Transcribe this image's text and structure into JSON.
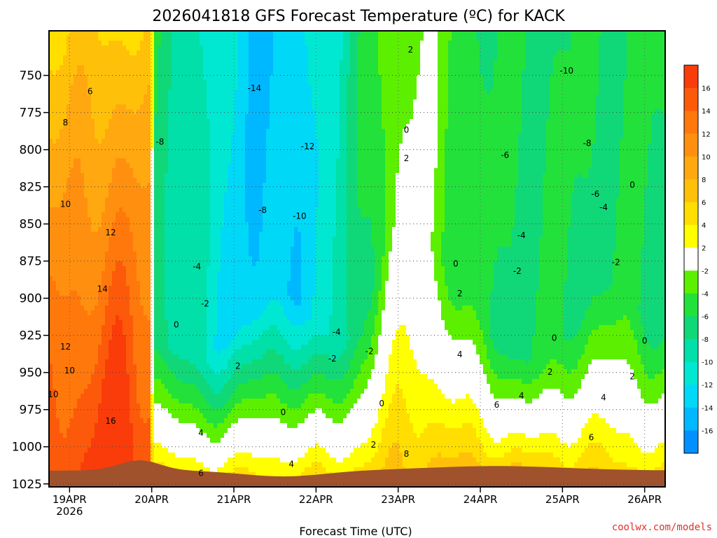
{
  "chart_data": {
    "type": "heatmap",
    "title": "2026041818 GFS Forecast Temperature (ºC) for KACK",
    "xlabel": "Forecast Time (UTC)",
    "ylabel": "Pressure (hPa)",
    "credit": "coolwx.com/models",
    "x_ticks": [
      {
        "t": 0,
        "label": "19APR",
        "sub": "2026"
      },
      {
        "t": 1,
        "label": "20APR"
      },
      {
        "t": 2,
        "label": "21APR"
      },
      {
        "t": 3,
        "label": "22APR"
      },
      {
        "t": 4,
        "label": "23APR"
      },
      {
        "t": 5,
        "label": "24APR"
      },
      {
        "t": 6,
        "label": "25APR"
      },
      {
        "t": 7,
        "label": "26APR"
      }
    ],
    "xlim": [
      -0.25,
      7.25
    ],
    "y_ticks": [
      750,
      775,
      800,
      825,
      850,
      875,
      900,
      925,
      950,
      975,
      1000,
      1025
    ],
    "ylim": [
      720,
      1027
    ],
    "colorbar": {
      "ticks": [
        16,
        14,
        12,
        10,
        8,
        6,
        4,
        2,
        -2,
        -4,
        -6,
        -8,
        -10,
        -12,
        -14,
        -16
      ],
      "bands": [
        {
          "min": 16,
          "max": 18,
          "color": "#fa3c0a"
        },
        {
          "min": 14,
          "max": 16,
          "color": "#fc5a0a"
        },
        {
          "min": 12,
          "max": 14,
          "color": "#ff780c"
        },
        {
          "min": 10,
          "max": 12,
          "color": "#ff900f"
        },
        {
          "min": 8,
          "max": 10,
          "color": "#ffa80f"
        },
        {
          "min": 6,
          "max": 8,
          "color": "#ffc00a"
        },
        {
          "min": 4,
          "max": 6,
          "color": "#ffde00"
        },
        {
          "min": 2,
          "max": 4,
          "color": "#ffff00"
        },
        {
          "min": -2,
          "max": 2,
          "color": "#ffffff"
        },
        {
          "min": -4,
          "max": -2,
          "color": "#5cf000"
        },
        {
          "min": -6,
          "max": -4,
          "color": "#22e13a"
        },
        {
          "min": -8,
          "max": -6,
          "color": "#10d878"
        },
        {
          "min": -10,
          "max": -8,
          "color": "#00e0a8"
        },
        {
          "min": -12,
          "max": -10,
          "color": "#00e8d2"
        },
        {
          "min": -14,
          "max": -12,
          "color": "#00d8f8"
        },
        {
          "min": -16,
          "max": -14,
          "color": "#00b8ff"
        },
        {
          "min": -18,
          "max": -16,
          "color": "#0090ff"
        }
      ],
      "terrain_color": "#a0522d",
      "zero_line_color": "#b4186e"
    },
    "regions": [
      {
        "label": "-14",
        "t": 1.5,
        "p": 735
      },
      {
        "label": "-12",
        "t": 3.0,
        "p": 790
      }
    ],
    "contour_labels": [
      {
        "label": "6",
        "t": 0.25,
        "p": 761
      },
      {
        "label": "8",
        "t": -0.05,
        "p": 782
      },
      {
        "label": "10",
        "t": -0.05,
        "p": 837
      },
      {
        "label": "12",
        "t": 0.5,
        "p": 856
      },
      {
        "label": "14",
        "t": 0.4,
        "p": 894
      },
      {
        "label": "12",
        "t": -0.05,
        "p": 933
      },
      {
        "label": "10",
        "t": 0.0,
        "p": 949
      },
      {
        "label": "10",
        "t": -0.2,
        "p": 965
      },
      {
        "label": "16",
        "t": 0.5,
        "p": 983
      },
      {
        "label": "-8",
        "t": 1.1,
        "p": 795
      },
      {
        "label": "-4",
        "t": 1.55,
        "p": 879
      },
      {
        "label": "-2",
        "t": 1.65,
        "p": 904
      },
      {
        "label": "0",
        "t": 1.3,
        "p": 918
      },
      {
        "label": "2",
        "t": 2.05,
        "p": 946
      },
      {
        "label": "4",
        "t": 1.6,
        "p": 991
      },
      {
        "label": "6",
        "t": 1.6,
        "p": 1018
      },
      {
        "label": "4",
        "t": 2.7,
        "p": 1012
      },
      {
        "label": "0",
        "t": 2.6,
        "p": 977
      },
      {
        "label": "-14",
        "t": 2.25,
        "p": 759
      },
      {
        "label": "-12",
        "t": 2.9,
        "p": 798
      },
      {
        "label": "-8",
        "t": 2.35,
        "p": 841
      },
      {
        "label": "-10",
        "t": 2.8,
        "p": 845
      },
      {
        "label": "-4",
        "t": 3.25,
        "p": 923
      },
      {
        "label": "-2",
        "t": 3.2,
        "p": 941
      },
      {
        "label": "-2",
        "t": 3.65,
        "p": 936
      },
      {
        "label": "0",
        "t": 3.8,
        "p": 971
      },
      {
        "label": "2",
        "t": 3.7,
        "p": 999
      },
      {
        "label": "2",
        "t": 4.15,
        "p": 733
      },
      {
        "label": "0",
        "t": 4.1,
        "p": 787
      },
      {
        "label": "2",
        "t": 4.1,
        "p": 806
      },
      {
        "label": "8",
        "t": 4.1,
        "p": 1005
      },
      {
        "label": "0",
        "t": 4.7,
        "p": 877
      },
      {
        "label": "2",
        "t": 4.75,
        "p": 897
      },
      {
        "label": "4",
        "t": 4.75,
        "p": 938
      },
      {
        "label": "6",
        "t": 5.2,
        "p": 972
      },
      {
        "label": "4",
        "t": 5.5,
        "p": 966
      },
      {
        "label": "2",
        "t": 5.85,
        "p": 950
      },
      {
        "label": "0",
        "t": 5.9,
        "p": 927
      },
      {
        "label": "-2",
        "t": 5.45,
        "p": 882
      },
      {
        "label": "-4",
        "t": 5.5,
        "p": 858
      },
      {
        "label": "-6",
        "t": 5.3,
        "p": 804
      },
      {
        "label": "-8",
        "t": 6.3,
        "p": 796
      },
      {
        "label": "-10",
        "t": 6.05,
        "p": 747
      },
      {
        "label": "-6",
        "t": 6.4,
        "p": 830
      },
      {
        "label": "-4",
        "t": 6.5,
        "p": 839
      },
      {
        "label": "-2",
        "t": 6.65,
        "p": 876
      },
      {
        "label": "0",
        "t": 6.85,
        "p": 824
      },
      {
        "label": "0",
        "t": 7.0,
        "p": 929
      },
      {
        "label": "2",
        "t": 6.85,
        "p": 953
      },
      {
        "label": "4",
        "t": 6.5,
        "p": 967
      },
      {
        "label": "6",
        "t": 6.35,
        "p": 994
      },
      {
        "label": "-2",
        "t": 7.3,
        "p": 752
      }
    ]
  }
}
